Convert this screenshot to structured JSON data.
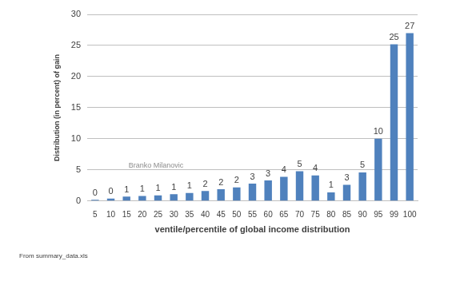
{
  "chart_data": {
    "type": "bar",
    "categories": [
      "5",
      "10",
      "15",
      "20",
      "25",
      "30",
      "35",
      "40",
      "45",
      "50",
      "55",
      "60",
      "65",
      "70",
      "75",
      "80",
      "85",
      "90",
      "95",
      "99",
      "100"
    ],
    "values": [
      0.2,
      0.4,
      0.7,
      0.8,
      0.9,
      1.1,
      1.3,
      1.6,
      1.9,
      2.2,
      2.8,
      3.3,
      3.9,
      4.8,
      4.1,
      1.4,
      2.6,
      4.6,
      10.0,
      25.2,
      27.0
    ],
    "value_labels": [
      "0",
      "0",
      "1",
      "1",
      "1",
      "1",
      "1",
      "2",
      "2",
      "2",
      "3",
      "3",
      "4",
      "5",
      "4",
      "1",
      "3",
      "5",
      "10",
      "25",
      "27"
    ],
    "data_labels": true,
    "color": "#4f81bd",
    "x_label": "ventile/percentile of global income distribution",
    "y_label": "Distribution (in percent) of gain",
    "ylim": [
      0,
      30
    ],
    "yticks": [
      0,
      5,
      10,
      15,
      20,
      25,
      30
    ],
    "grid": true,
    "annotations": [
      "Branko Milanovic"
    ],
    "caption": "From summary_data.xls"
  }
}
